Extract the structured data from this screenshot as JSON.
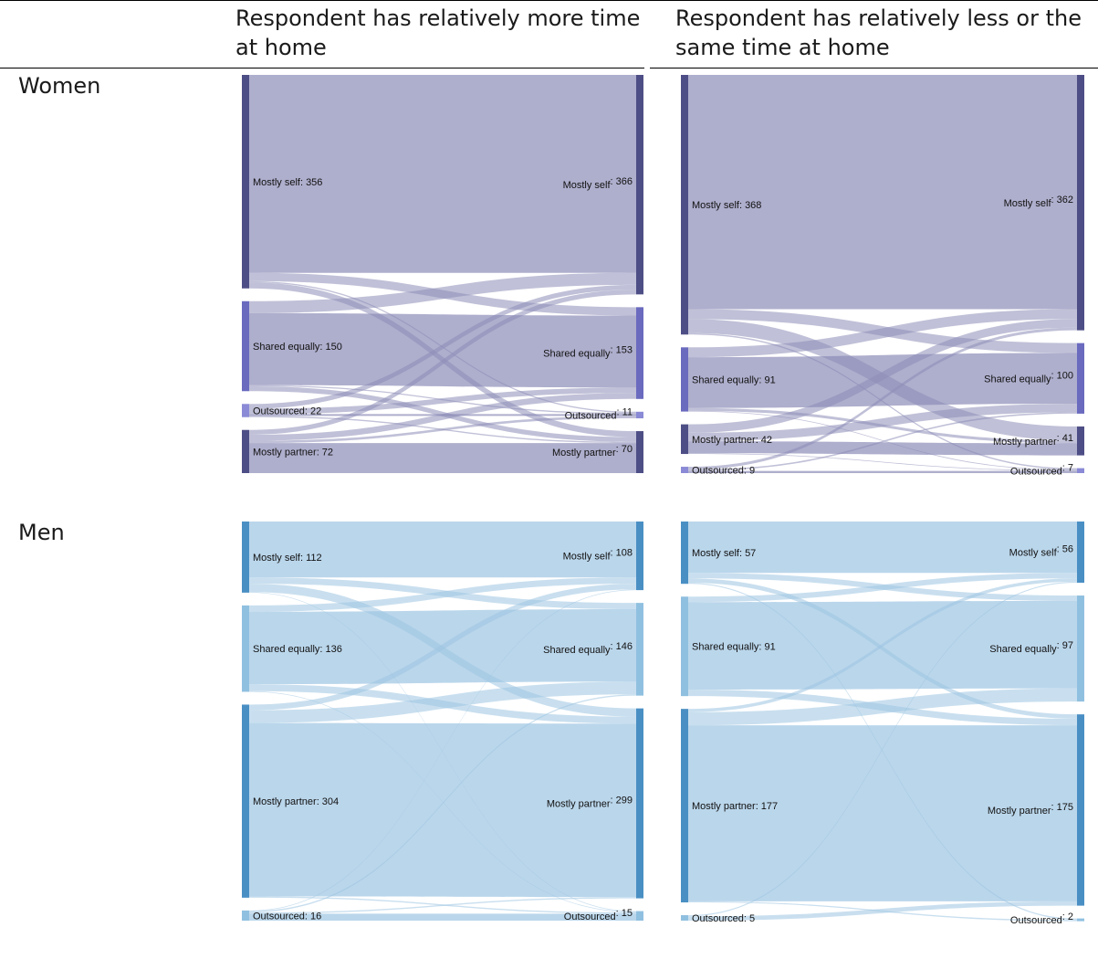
{
  "header": {
    "col1": "Respondent has relatively more time at home",
    "col1_line1": "Respondent has relatively more time",
    "col1_line2": "at home",
    "col2": "Respondent has relatively less or the same time at home",
    "col2_line1": "Respondent has relatively less or the",
    "col2_line2": "same time at home"
  },
  "rows": {
    "women": "Women",
    "men": "Men"
  },
  "chart_data": [
    {
      "type": "sankey",
      "group": "Women",
      "panel": "Respondent has relatively more time at home",
      "palette": "purple",
      "colors": {
        "node": "#4e4e86",
        "node_light": "#8a8ad6",
        "link": "#8c8cb8"
      },
      "left_nodes": [
        {
          "label": "Mostly self",
          "value": 356
        },
        {
          "label": "Shared equally",
          "value": 150
        },
        {
          "label": "Outsourced",
          "value": 22
        },
        {
          "label": "Mostly partner",
          "value": 72
        }
      ],
      "right_nodes": [
        {
          "label": "Mostly self",
          "value": 366
        },
        {
          "label": "Shared equally",
          "value": 153
        },
        {
          "label": "Outsourced",
          "value": 11
        },
        {
          "label": "Mostly partner",
          "value": 70
        }
      ],
      "flows": [
        [
          330,
          14,
          2,
          10
        ],
        [
          20,
          120,
          2,
          8
        ],
        [
          8,
          9,
          3,
          2
        ],
        [
          8,
          10,
          4,
          50
        ]
      ]
    },
    {
      "type": "sankey",
      "group": "Women",
      "panel": "Respondent has relatively less or the same time at home",
      "palette": "purple",
      "colors": {
        "node": "#4e4e86",
        "node_light": "#8a8ad6",
        "link": "#8c8cb8"
      },
      "left_nodes": [
        {
          "label": "Mostly self",
          "value": 368
        },
        {
          "label": "Shared equally",
          "value": 91
        },
        {
          "label": "Mostly partner",
          "value": 42
        },
        {
          "label": "Outsourced",
          "value": 9
        }
      ],
      "right_nodes": [
        {
          "label": "Mostly self",
          "value": 362
        },
        {
          "label": "Shared equally",
          "value": 100
        },
        {
          "label": "Mostly partner",
          "value": 41
        },
        {
          "label": "Outsourced",
          "value": 7
        }
      ],
      "flows": [
        [
          332,
          14,
          20,
          2
        ],
        [
          14,
          72,
          4,
          1
        ],
        [
          12,
          12,
          17,
          1
        ],
        [
          4,
          2,
          0,
          3
        ]
      ]
    },
    {
      "type": "sankey",
      "group": "Men",
      "panel": "Respondent has relatively more time at home",
      "palette": "blue",
      "colors": {
        "node": "#4a8fc4",
        "node_light": "#90c0e0",
        "link": "#9cc4e2"
      },
      "left_nodes": [
        {
          "label": "Mostly self",
          "value": 112
        },
        {
          "label": "Shared equally",
          "value": 136
        },
        {
          "label": "Mostly partner",
          "value": 304
        },
        {
          "label": "Outsourced",
          "value": 16
        }
      ],
      "right_nodes": [
        {
          "label": "Mostly self",
          "value": 108
        },
        {
          "label": "Shared equally",
          "value": 146
        },
        {
          "label": "Mostly partner",
          "value": 299
        },
        {
          "label": "Outsourced",
          "value": 15
        }
      ],
      "flows": [
        [
          88,
          10,
          13,
          1
        ],
        [
          10,
          114,
          11,
          1
        ],
        [
          9,
          20,
          273,
          2
        ],
        [
          1,
          2,
          2,
          11
        ]
      ]
    },
    {
      "type": "sankey",
      "group": "Men",
      "panel": "Respondent has relatively less or the same time at home",
      "palette": "blue",
      "colors": {
        "node": "#4a8fc4",
        "node_light": "#90c0e0",
        "link": "#9cc4e2"
      },
      "left_nodes": [
        {
          "label": "Mostly self",
          "value": 57
        },
        {
          "label": "Shared equally",
          "value": 91
        },
        {
          "label": "Mostly partner",
          "value": 177
        },
        {
          "label": "Outsourced",
          "value": 5
        }
      ],
      "right_nodes": [
        {
          "label": "Mostly self",
          "value": 56
        },
        {
          "label": "Shared equally",
          "value": 97
        },
        {
          "label": "Mostly partner",
          "value": 175
        },
        {
          "label": "Outsourced",
          "value": 2
        }
      ],
      "flows": [
        [
          47,
          5,
          4,
          1
        ],
        [
          5,
          80,
          6,
          0
        ],
        [
          3,
          12,
          161,
          1
        ],
        [
          1,
          0,
          4,
          0
        ]
      ]
    }
  ]
}
